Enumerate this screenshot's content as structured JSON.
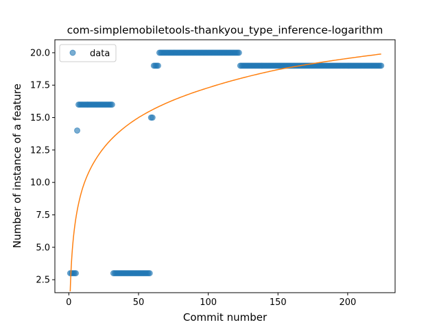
{
  "chart_data": {
    "type": "scatter",
    "title": "com-simplemobiletools-thankyou_type_inference-logarithm",
    "xlabel": "Commit number",
    "ylabel": "Number of instance of a feature",
    "xlim": [
      -10,
      234
    ],
    "ylim": [
      1.5,
      21
    ],
    "xticks": [
      0,
      50,
      100,
      150,
      200
    ],
    "yticks": [
      2.5,
      5.0,
      7.5,
      10.0,
      12.5,
      15.0,
      17.5,
      20.0
    ],
    "xtick_labels": [
      "0",
      "50",
      "100",
      "150",
      "200"
    ],
    "ytick_labels": [
      "2.5",
      "5.0",
      "7.5",
      "10.0",
      "12.5",
      "15.0",
      "17.5",
      "20.0"
    ],
    "grid": false,
    "legend": {
      "position": "top-left",
      "entries": [
        "data"
      ]
    },
    "colors": {
      "data": "#1f77b4",
      "fit": "#ff7f0e"
    },
    "series": [
      {
        "name": "data",
        "kind": "scatter",
        "segments": [
          {
            "x_from": 1,
            "x_to": 5,
            "y": 3
          },
          {
            "x_from": 6,
            "x_to": 6,
            "y": 14
          },
          {
            "x_from": 7,
            "x_to": 31,
            "y": 16
          },
          {
            "x_from": 32,
            "x_to": 58,
            "y": 3
          },
          {
            "x_from": 59,
            "x_to": 60,
            "y": 15
          },
          {
            "x_from": 61,
            "x_to": 64,
            "y": 19
          },
          {
            "x_from": 65,
            "x_to": 122,
            "y": 20
          },
          {
            "x_from": 123,
            "x_to": 224,
            "y": 19
          }
        ]
      },
      {
        "name": "",
        "kind": "line",
        "function": "logarithmic fit",
        "samples": [
          {
            "x": 1,
            "y": 1.6
          },
          {
            "x": 2,
            "y": 4.0
          },
          {
            "x": 5,
            "y": 7.2
          },
          {
            "x": 10,
            "y": 9.6
          },
          {
            "x": 20,
            "y": 11.9
          },
          {
            "x": 50,
            "y": 15.0
          },
          {
            "x": 100,
            "y": 17.3
          },
          {
            "x": 150,
            "y": 18.7
          },
          {
            "x": 224,
            "y": 19.9
          }
        ]
      }
    ]
  }
}
